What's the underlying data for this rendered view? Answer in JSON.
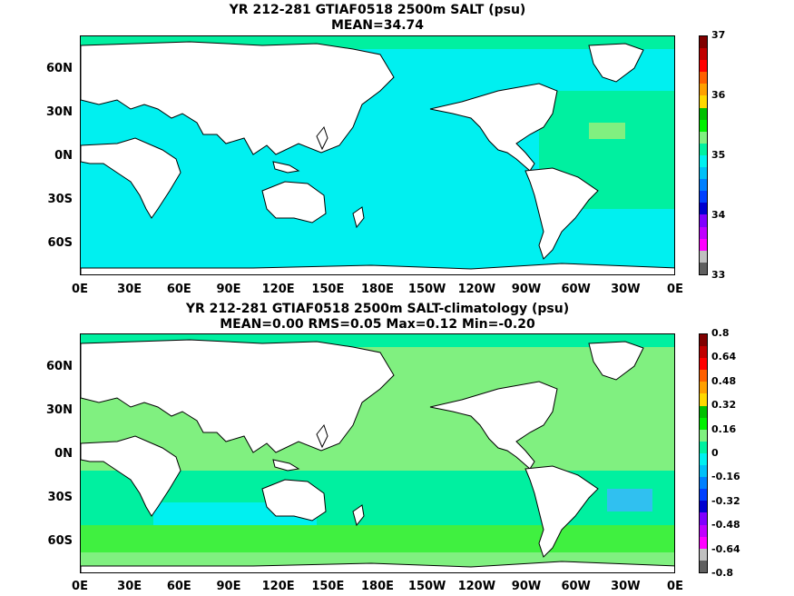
{
  "colors": {
    "land": "#ffffff",
    "cyan": "#00f0f0",
    "aqua_green": "#00f0a0",
    "light_green": "#80f080",
    "mid_green": "#40f040",
    "bright_green": "#00f000",
    "sky": "#30c0f0",
    "coast": "#000000"
  },
  "chart_data": [
    {
      "type": "heatmap",
      "title": "YR 212-281 GTIAF0518 2500m SALT (psu)",
      "subtitle": "MEAN=34.74",
      "xlabel": "",
      "ylabel": "",
      "x_ticks": [
        "0E",
        "30E",
        "60E",
        "90E",
        "120E",
        "150E",
        "180E",
        "150W",
        "120W",
        "90W",
        "60W",
        "30W",
        "0E"
      ],
      "y_ticks": [
        "60N",
        "30N",
        "0N",
        "30S",
        "60S"
      ],
      "colorbar": {
        "labels": [
          "37",
          "36",
          "35",
          "34",
          "33"
        ],
        "colors": [
          "#800000",
          "#c00000",
          "#ff0000",
          "#ff6000",
          "#ffa000",
          "#ffd800",
          "#00c000",
          "#00f000",
          "#80f080",
          "#00f0a0",
          "#00f0f0",
          "#00c0f8",
          "#0080ff",
          "#0040ff",
          "#0000d0",
          "#8000ff",
          "#c000ff",
          "#ff00ff",
          "#c0c0c0",
          "#606060"
        ]
      }
    },
    {
      "type": "heatmap",
      "title": "YR 212-281 GTIAF0518 2500m SALT-climatology (psu)",
      "subtitle": "MEAN=0.00   RMS=0.05   Max=0.12   Min=-0.20",
      "xlabel": "",
      "ylabel": "",
      "x_ticks": [
        "0E",
        "30E",
        "60E",
        "90E",
        "120E",
        "150E",
        "180E",
        "150W",
        "120W",
        "90W",
        "60W",
        "30W",
        "0E"
      ],
      "y_ticks": [
        "60N",
        "30N",
        "0N",
        "30S",
        "60S"
      ],
      "colorbar": {
        "labels": [
          "0.8",
          "0.64",
          "0.48",
          "0.32",
          "0.16",
          "0",
          "-0.16",
          "-0.32",
          "-0.48",
          "-0.64",
          "-0.8"
        ],
        "colors": [
          "#800000",
          "#c00000",
          "#ff0000",
          "#ff6000",
          "#ffa000",
          "#ffd800",
          "#00c000",
          "#00f000",
          "#80f080",
          "#00f0a0",
          "#00f0f0",
          "#00c0f8",
          "#0080ff",
          "#0040ff",
          "#0000d0",
          "#8000ff",
          "#c000ff",
          "#ff00ff",
          "#c0c0c0",
          "#606060"
        ]
      }
    }
  ]
}
